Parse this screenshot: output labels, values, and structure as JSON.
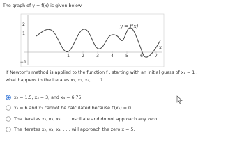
{
  "header": {
    "text": "The graph of y = f(x) is given below."
  },
  "graph": {
    "y_tick_labels": [
      "2",
      "1",
      "−1"
    ],
    "x_tick_labels": [
      "1",
      "2",
      "3",
      "4",
      "5",
      "6",
      "7"
    ],
    "curve_label": "y = f(x)",
    "x_axis_label": "x"
  },
  "question": {
    "line1": "If Newton's method is applied to the function f , starting with an initial guess of x₁ = 1 ,",
    "line2": "what happens to the iterates x₂, x₃, x₄, . . . ?"
  },
  "options": [
    "x₂ = 1.5, x₃ = 3, and x₄ = 6.75.",
    "x₂ = 6 and x₂ cannot be calculated because f′(x₂) = 0 .",
    "The iterates x₂, x₃, x₄, . . . oscillate and do not approach any zero.",
    "The iterates x₂, x₃, x₄, . . . will approach the zero x = 5."
  ]
}
